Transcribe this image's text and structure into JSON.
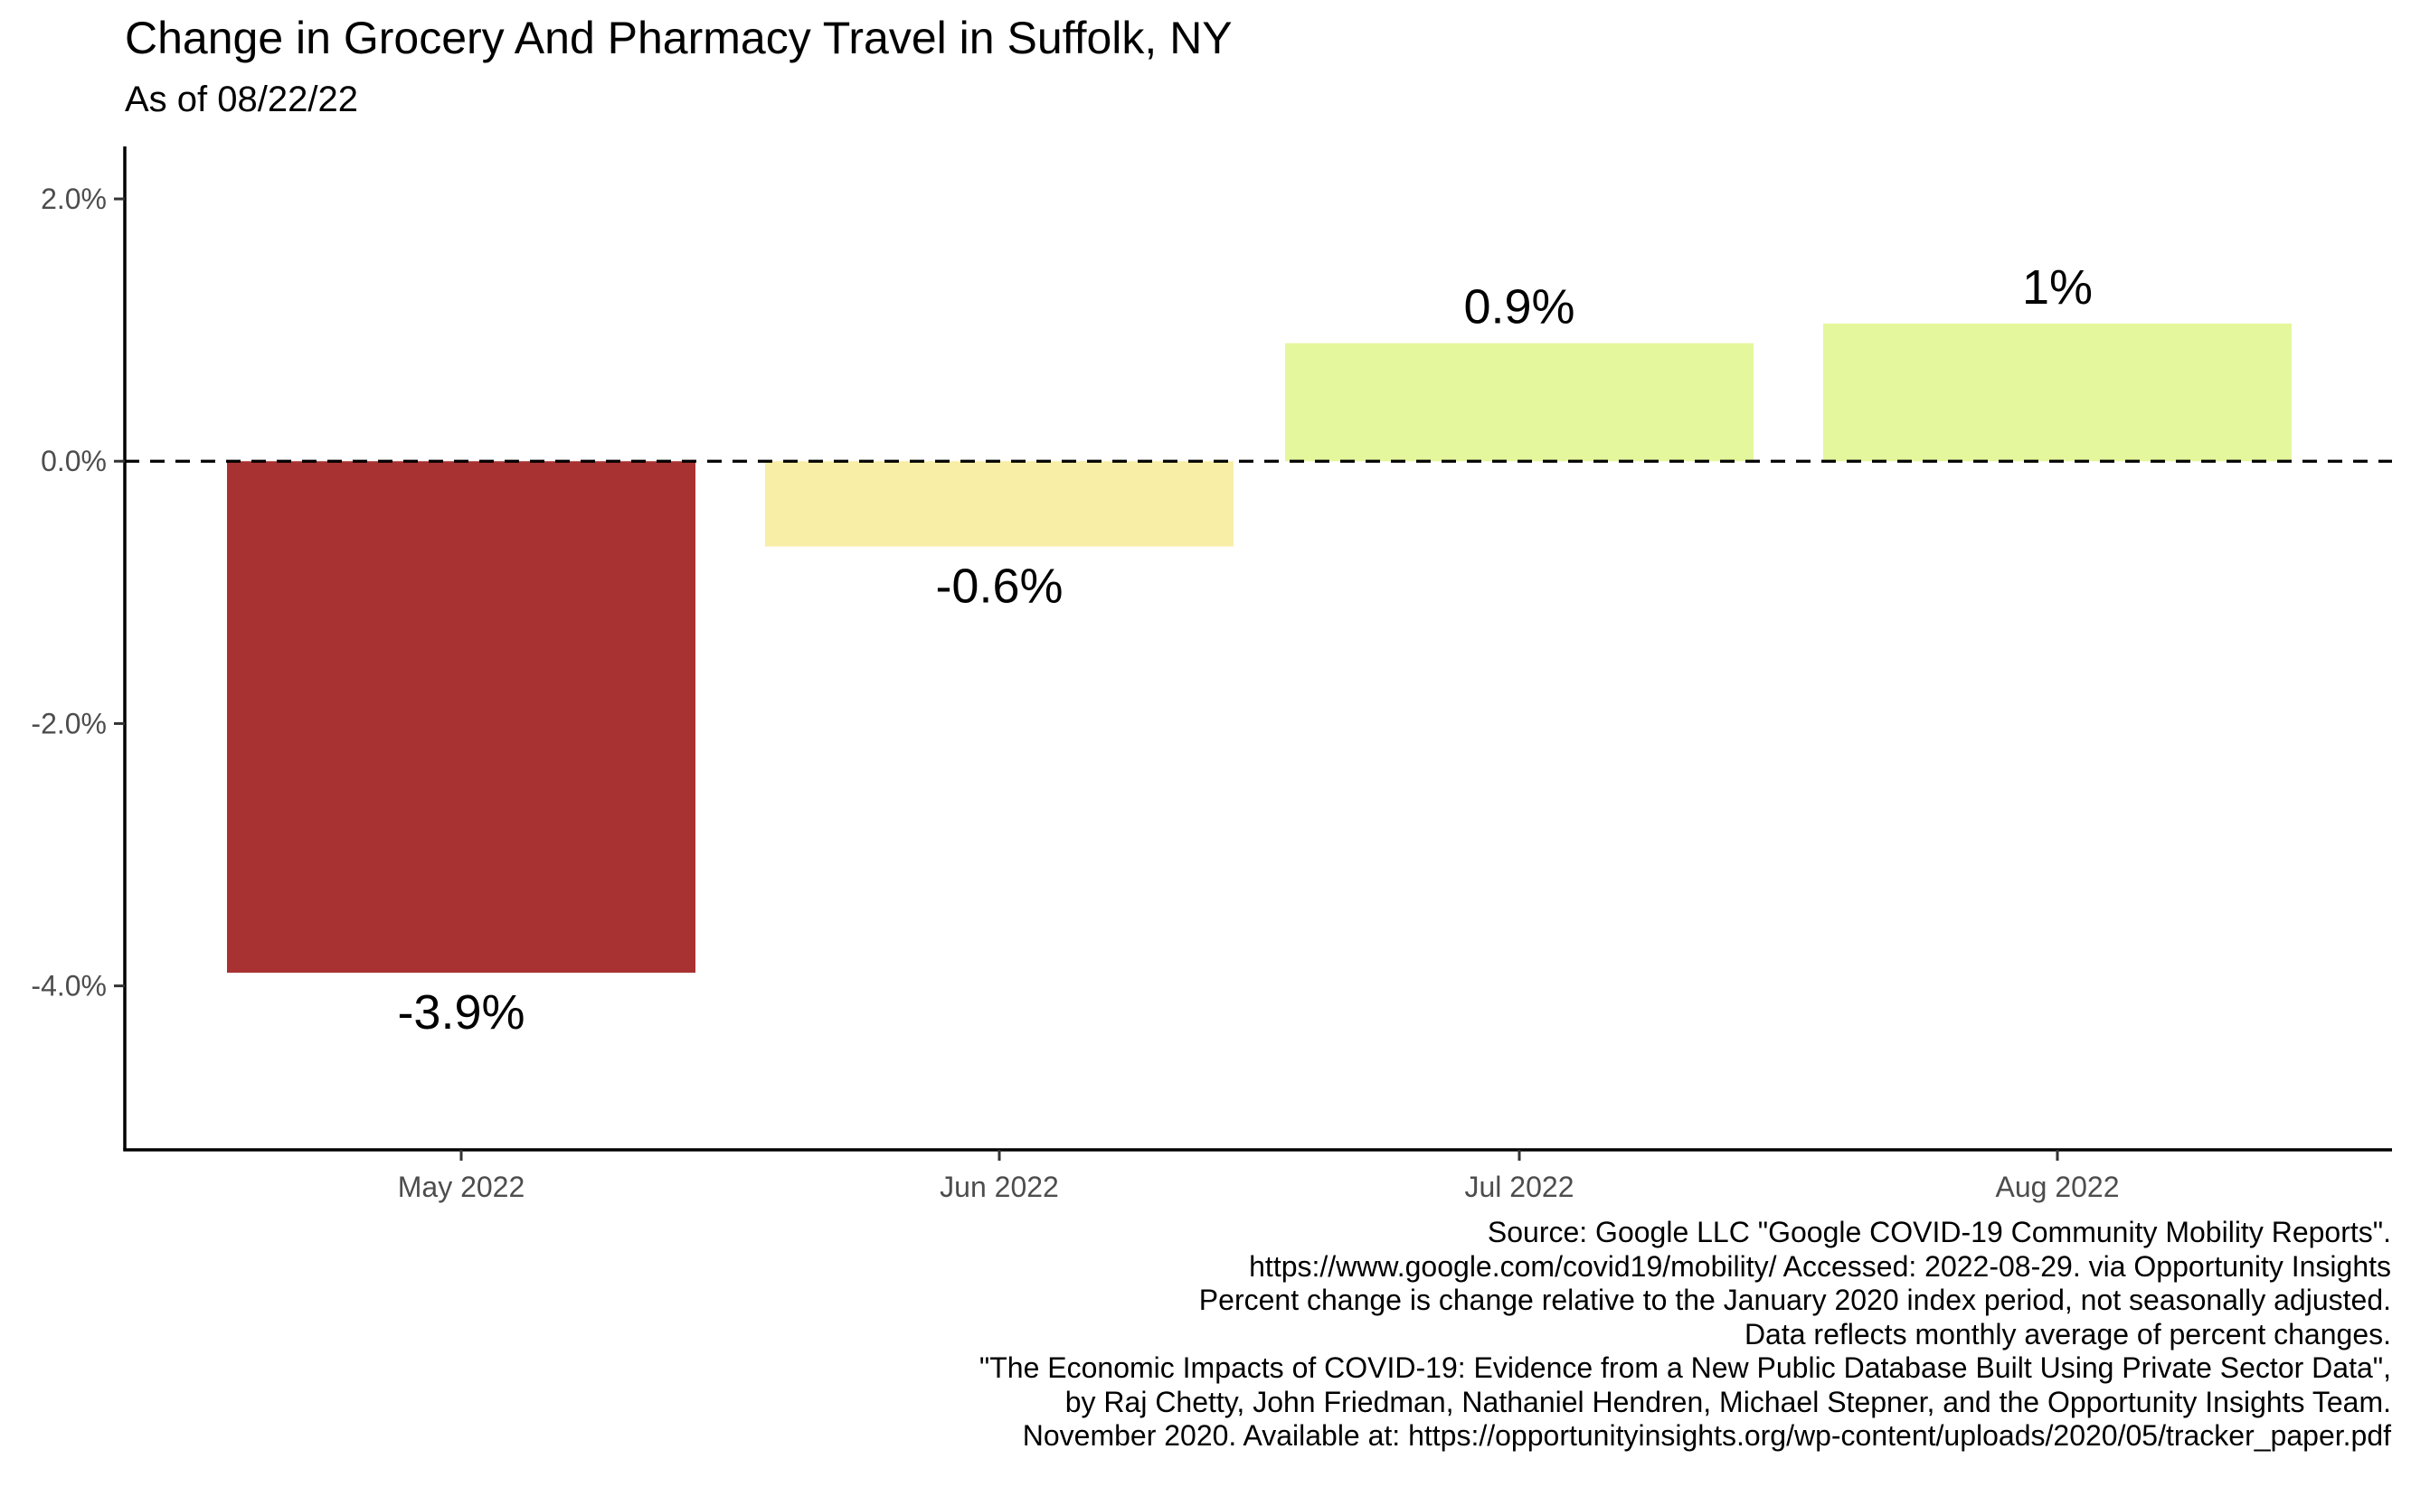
{
  "chart_data": {
    "type": "bar",
    "title": "Change in Grocery And Pharmacy Travel in Suffolk, NY",
    "subtitle": "As of 08/22/22",
    "categories": [
      "May 2022",
      "Jun 2022",
      "Jul 2022",
      "Aug 2022"
    ],
    "values": [
      -3.9,
      -0.65,
      0.9,
      1.05
    ],
    "data_labels": [
      "-3.9%",
      "-0.6%",
      "0.9%",
      "1%"
    ],
    "bar_colors": [
      "#a83232",
      "#f9eea6",
      "#e4f79c",
      "#e4f79c"
    ],
    "ylim": [
      -5.25,
      2.4
    ],
    "yticks": [
      2.0,
      0.0,
      -2.0,
      -4.0
    ],
    "ytick_labels": [
      "2.0%",
      "0.0%",
      "-2.0%",
      "-4.0%"
    ],
    "reference_line": {
      "value": 0,
      "style": "dashed",
      "color": "#000000"
    },
    "grid": false,
    "xlabel": "",
    "ylabel": "",
    "caption": [
      "Source: Google LLC \"Google COVID-19 Community Mobility Reports\".",
      "https://www.google.com/covid19/mobility/ Accessed: 2022-08-29. via Opportunity Insights",
      "Percent change is change relative to the January 2020 index period, not seasonally adjusted.",
      "Data reflects monthly average of percent changes.",
      "\"The Economic Impacts of COVID-19: Evidence from a New Public Database Built Using Private Sector Data\",",
      "by Raj Chetty, John Friedman, Nathaniel Hendren, Michael Stepner, and the Opportunity Insights Team.",
      "November 2020. Available at: https://opportunityinsights.org/wp-content/uploads/2020/05/tracker_paper.pdf"
    ]
  }
}
